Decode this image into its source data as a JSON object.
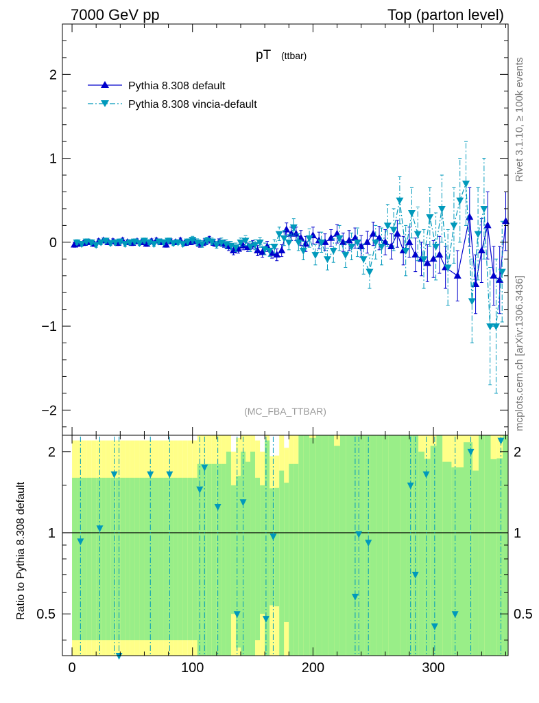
{
  "header": {
    "left": "7000 GeV pp",
    "right": "Top (parton level)"
  },
  "side_labels": {
    "rivet": "Rivet 3.1.10, ≥ 100k events",
    "mcplots": "mcplots.cern.ch [arXiv:1306.3436]"
  },
  "chart_data": [
    {
      "type": "line",
      "title": "pT",
      "title_sub": "(ttbar)",
      "watermark": "(MC_FBA_TTBAR)",
      "xlim": [
        -8,
        362
      ],
      "ylim": [
        -2.3,
        2.6
      ],
      "yticks": [
        -2,
        -1,
        0,
        1,
        2
      ],
      "ytick_labels": [
        "−2",
        "−1",
        "0",
        "1",
        "2"
      ],
      "legend_position": "top-left",
      "series": [
        {
          "name": "Pythia 8.308 default",
          "color": "#0000cc",
          "marker": "triangle-up",
          "linestyle": "solid",
          "x": [
            2,
            6,
            10,
            14,
            18,
            22,
            26,
            30,
            34,
            38,
            42,
            46,
            50,
            54,
            58,
            62,
            66,
            70,
            74,
            78,
            82,
            86,
            90,
            94,
            98,
            102,
            106,
            110,
            114,
            118,
            122,
            126,
            130,
            134,
            138,
            142,
            146,
            150,
            154,
            158,
            162,
            166,
            170,
            174,
            178,
            182,
            186,
            190,
            194,
            200,
            205,
            210,
            215,
            220,
            225,
            230,
            235,
            240,
            245,
            250,
            255,
            260,
            265,
            270,
            275,
            280,
            285,
            290,
            295,
            300,
            305,
            310,
            320,
            330,
            335,
            340,
            345,
            350,
            355,
            360
          ],
          "y": [
            -0.03,
            -0.02,
            -0.01,
            0.0,
            -0.02,
            0.01,
            0.02,
            0.0,
            0.01,
            -0.01,
            0.02,
            0.0,
            -0.01,
            0.01,
            0.0,
            -0.02,
            0.01,
            0.02,
            0.0,
            -0.03,
            0.01,
            0.0,
            0.02,
            -0.01,
            0.0,
            0.01,
            -0.02,
            0.0,
            0.03,
            -0.01,
            0.0,
            -0.02,
            -0.05,
            -0.1,
            -0.08,
            -0.04,
            -0.06,
            -0.03,
            -0.1,
            -0.12,
            -0.05,
            -0.13,
            -0.15,
            -0.1,
            0.15,
            0.1,
            0.1,
            0.05,
            -0.02,
            0.08,
            0.02,
            0.0,
            0.05,
            0.1,
            0.0,
            0.02,
            0.05,
            -0.05,
            0.0,
            0.1,
            0.05,
            0.0,
            -0.05,
            0.1,
            -0.1,
            0.0,
            -0.15,
            -0.2,
            -0.25,
            -0.2,
            -0.15,
            -0.3,
            -0.4,
            0.3,
            -0.5,
            -0.1,
            0.2,
            -0.4,
            -0.45,
            0.25
          ],
          "yerr": [
            0.03,
            0.03,
            0.03,
            0.03,
            0.03,
            0.03,
            0.03,
            0.03,
            0.03,
            0.03,
            0.03,
            0.03,
            0.03,
            0.03,
            0.03,
            0.03,
            0.03,
            0.03,
            0.03,
            0.03,
            0.03,
            0.03,
            0.03,
            0.03,
            0.03,
            0.03,
            0.04,
            0.04,
            0.04,
            0.04,
            0.04,
            0.04,
            0.05,
            0.05,
            0.05,
            0.05,
            0.05,
            0.05,
            0.06,
            0.06,
            0.06,
            0.06,
            0.07,
            0.07,
            0.08,
            0.08,
            0.08,
            0.09,
            0.09,
            0.1,
            0.1,
            0.1,
            0.1,
            0.11,
            0.11,
            0.12,
            0.12,
            0.13,
            0.13,
            0.14,
            0.14,
            0.15,
            0.15,
            0.16,
            0.17,
            0.18,
            0.2,
            0.2,
            0.22,
            0.22,
            0.22,
            0.25,
            0.3,
            0.35,
            0.35,
            0.38,
            0.4,
            0.35,
            0.4,
            0.35
          ]
        },
        {
          "name": "Pythia 8.308 vincia-default",
          "color": "#0099bb",
          "marker": "triangle-down",
          "linestyle": "dashdot",
          "x": [
            4,
            8,
            12,
            16,
            20,
            24,
            28,
            32,
            36,
            40,
            44,
            48,
            52,
            56,
            60,
            64,
            68,
            72,
            76,
            80,
            84,
            88,
            92,
            96,
            100,
            104,
            108,
            112,
            116,
            120,
            124,
            128,
            132,
            136,
            140,
            144,
            148,
            152,
            156,
            160,
            164,
            168,
            172,
            176,
            180,
            184,
            188,
            192,
            197,
            202,
            207,
            212,
            217,
            222,
            227,
            232,
            237,
            242,
            247,
            252,
            257,
            262,
            267,
            272,
            277,
            282,
            287,
            292,
            297,
            302,
            307,
            312,
            317,
            322,
            327,
            332,
            337,
            342,
            347,
            352,
            357
          ],
          "y": [
            0.0,
            -0.02,
            0.01,
            0.0,
            -0.03,
            0.0,
            0.02,
            -0.01,
            0.0,
            0.01,
            -0.02,
            0.0,
            0.01,
            -0.01,
            0.02,
            0.0,
            -0.02,
            0.01,
            0.0,
            0.02,
            -0.01,
            0.0,
            -0.02,
            0.01,
            0.03,
            0.0,
            -0.02,
            0.02,
            0.01,
            -0.03,
            0.0,
            -0.02,
            -0.04,
            -0.06,
            0.0,
            0.02,
            -0.05,
            -0.03,
            0.0,
            -0.08,
            -0.1,
            -0.05,
            0.1,
            0.05,
            0.0,
            0.18,
            0.0,
            -0.1,
            0.05,
            -0.15,
            0.0,
            -0.2,
            -0.1,
            0.05,
            -0.15,
            -0.05,
            0.0,
            -0.2,
            -0.35,
            0.0,
            -0.05,
            0.2,
            0.15,
            0.5,
            -0.1,
            0.35,
            0.1,
            -0.2,
            0.3,
            -0.05,
            0.4,
            -0.3,
            0.2,
            0.5,
            0.7,
            -0.7,
            0.1,
            0.4,
            -1.0,
            -1.0,
            -0.35
          ],
          "yerr": [
            0.03,
            0.03,
            0.03,
            0.03,
            0.03,
            0.03,
            0.03,
            0.03,
            0.03,
            0.03,
            0.03,
            0.03,
            0.03,
            0.03,
            0.03,
            0.03,
            0.03,
            0.03,
            0.03,
            0.03,
            0.03,
            0.03,
            0.03,
            0.03,
            0.04,
            0.04,
            0.04,
            0.04,
            0.04,
            0.04,
            0.05,
            0.05,
            0.05,
            0.05,
            0.05,
            0.06,
            0.06,
            0.06,
            0.06,
            0.07,
            0.07,
            0.08,
            0.08,
            0.09,
            0.09,
            0.1,
            0.1,
            0.11,
            0.11,
            0.12,
            0.12,
            0.13,
            0.14,
            0.15,
            0.15,
            0.16,
            0.17,
            0.18,
            0.2,
            0.2,
            0.22,
            0.25,
            0.25,
            0.28,
            0.3,
            0.3,
            0.32,
            0.35,
            0.35,
            0.4,
            0.4,
            0.45,
            0.45,
            0.5,
            0.5,
            0.5,
            0.55,
            0.6,
            0.7,
            0.8,
            0.6
          ]
        }
      ]
    },
    {
      "type": "line",
      "ylabel": "Ratio to Pythia 8.308 default",
      "xlim": [
        -8,
        362
      ],
      "ylim": [
        0.35,
        2.3
      ],
      "yticks": [
        0.5,
        1,
        2
      ],
      "ytick_labels": [
        "0.5",
        "1",
        "2"
      ],
      "xticks": [
        0,
        100,
        200,
        300
      ],
      "xtick_labels": [
        "0",
        "100",
        "200",
        "300"
      ],
      "reference_line": 1,
      "band_colors": {
        "inner": "#99ee88",
        "outer": "#ffff88"
      },
      "series": [
        {
          "name": "Pythia 8.308 vincia-default",
          "color": "#0099bb",
          "x": [
            7,
            23,
            35,
            39,
            65,
            81,
            106,
            110,
            121,
            137,
            142,
            161,
            167,
            235,
            238,
            246,
            281,
            285,
            294,
            301,
            318,
            331,
            356
          ],
          "y": [
            0.93,
            1.04,
            1.65,
            0.35,
            1.65,
            1.65,
            1.45,
            1.75,
            1.25,
            0.5,
            1.3,
            0.48,
            0.97,
            0.58,
            0.99,
            0.92,
            1.5,
            0.7,
            1.65,
            0.45,
            0.5,
            2.0,
            2.2
          ]
        }
      ]
    }
  ]
}
